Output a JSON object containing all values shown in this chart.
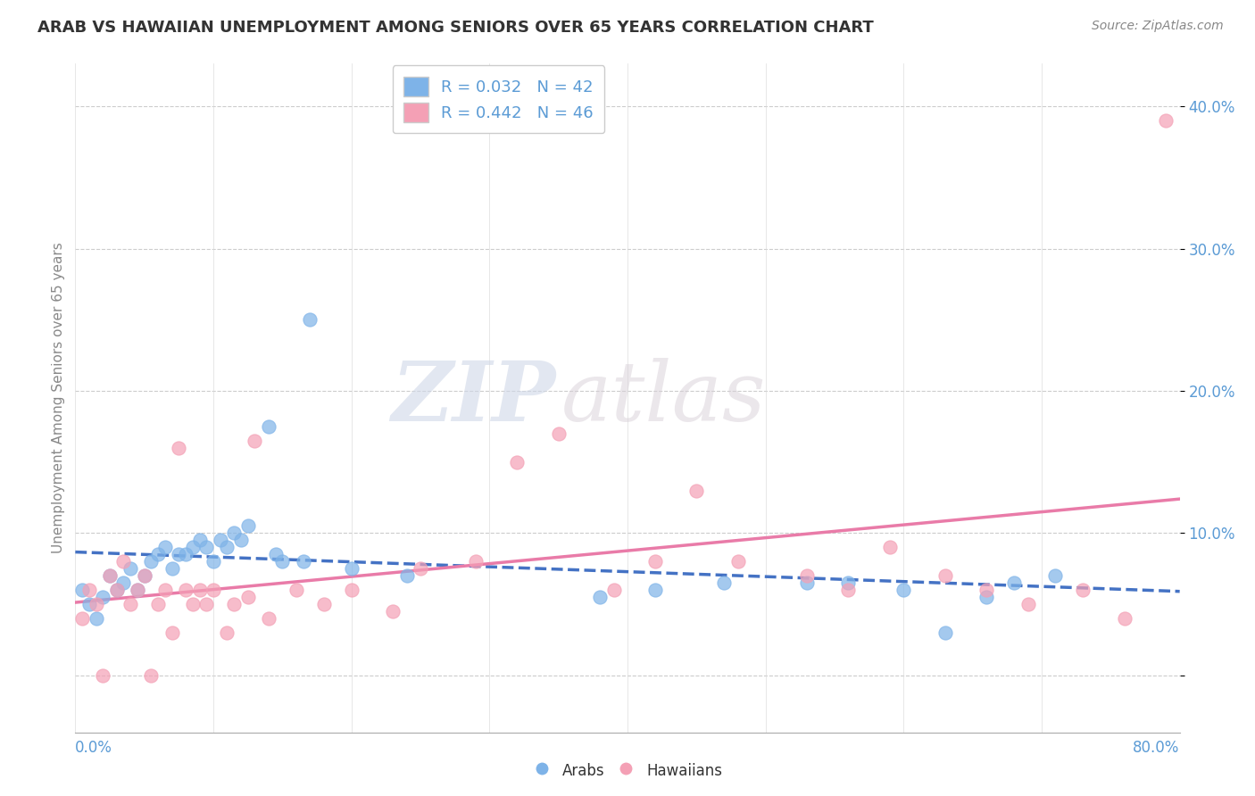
{
  "title": "ARAB VS HAWAIIAN UNEMPLOYMENT AMONG SENIORS OVER 65 YEARS CORRELATION CHART",
  "source": "Source: ZipAtlas.com",
  "ylabel": "Unemployment Among Seniors over 65 years",
  "xlim": [
    0.0,
    0.8
  ],
  "ylim": [
    -0.04,
    0.43
  ],
  "arab_R": 0.032,
  "arab_N": 42,
  "hawaiian_R": 0.442,
  "hawaiian_N": 46,
  "arab_color": "#7eb3e8",
  "hawaiian_color": "#f4a0b5",
  "arab_line_color": "#4472c4",
  "hawaiian_line_color": "#e97ba8",
  "watermark_zip": "ZIP",
  "watermark_atlas": "atlas",
  "legend_arab": "Arabs",
  "legend_hawaiian": "Hawaiians",
  "arab_x": [
    0.005,
    0.01,
    0.015,
    0.02,
    0.025,
    0.03,
    0.035,
    0.04,
    0.045,
    0.05,
    0.055,
    0.06,
    0.065,
    0.07,
    0.075,
    0.08,
    0.085,
    0.09,
    0.095,
    0.1,
    0.105,
    0.11,
    0.115,
    0.12,
    0.125,
    0.14,
    0.145,
    0.15,
    0.165,
    0.17,
    0.2,
    0.24,
    0.38,
    0.42,
    0.47,
    0.53,
    0.56,
    0.6,
    0.63,
    0.66,
    0.68,
    0.71
  ],
  "arab_y": [
    0.06,
    0.05,
    0.04,
    0.055,
    0.07,
    0.06,
    0.065,
    0.075,
    0.06,
    0.07,
    0.08,
    0.085,
    0.09,
    0.075,
    0.085,
    0.085,
    0.09,
    0.095,
    0.09,
    0.08,
    0.095,
    0.09,
    0.1,
    0.095,
    0.105,
    0.175,
    0.085,
    0.08,
    0.08,
    0.25,
    0.075,
    0.07,
    0.055,
    0.06,
    0.065,
    0.065,
    0.065,
    0.06,
    0.03,
    0.055,
    0.065,
    0.07
  ],
  "hawaiian_x": [
    0.005,
    0.01,
    0.015,
    0.02,
    0.025,
    0.03,
    0.035,
    0.04,
    0.045,
    0.05,
    0.055,
    0.06,
    0.065,
    0.07,
    0.075,
    0.08,
    0.085,
    0.09,
    0.095,
    0.1,
    0.11,
    0.115,
    0.125,
    0.13,
    0.14,
    0.16,
    0.18,
    0.2,
    0.23,
    0.25,
    0.29,
    0.32,
    0.35,
    0.39,
    0.42,
    0.45,
    0.48,
    0.53,
    0.56,
    0.59,
    0.63,
    0.66,
    0.69,
    0.73,
    0.76,
    0.79
  ],
  "hawaiian_y": [
    0.04,
    0.06,
    0.05,
    0.0,
    0.07,
    0.06,
    0.08,
    0.05,
    0.06,
    0.07,
    0.0,
    0.05,
    0.06,
    0.03,
    0.16,
    0.06,
    0.05,
    0.06,
    0.05,
    0.06,
    0.03,
    0.05,
    0.055,
    0.165,
    0.04,
    0.06,
    0.05,
    0.06,
    0.045,
    0.075,
    0.08,
    0.15,
    0.17,
    0.06,
    0.08,
    0.13,
    0.08,
    0.07,
    0.06,
    0.09,
    0.07,
    0.06,
    0.05,
    0.06,
    0.04,
    0.39
  ]
}
